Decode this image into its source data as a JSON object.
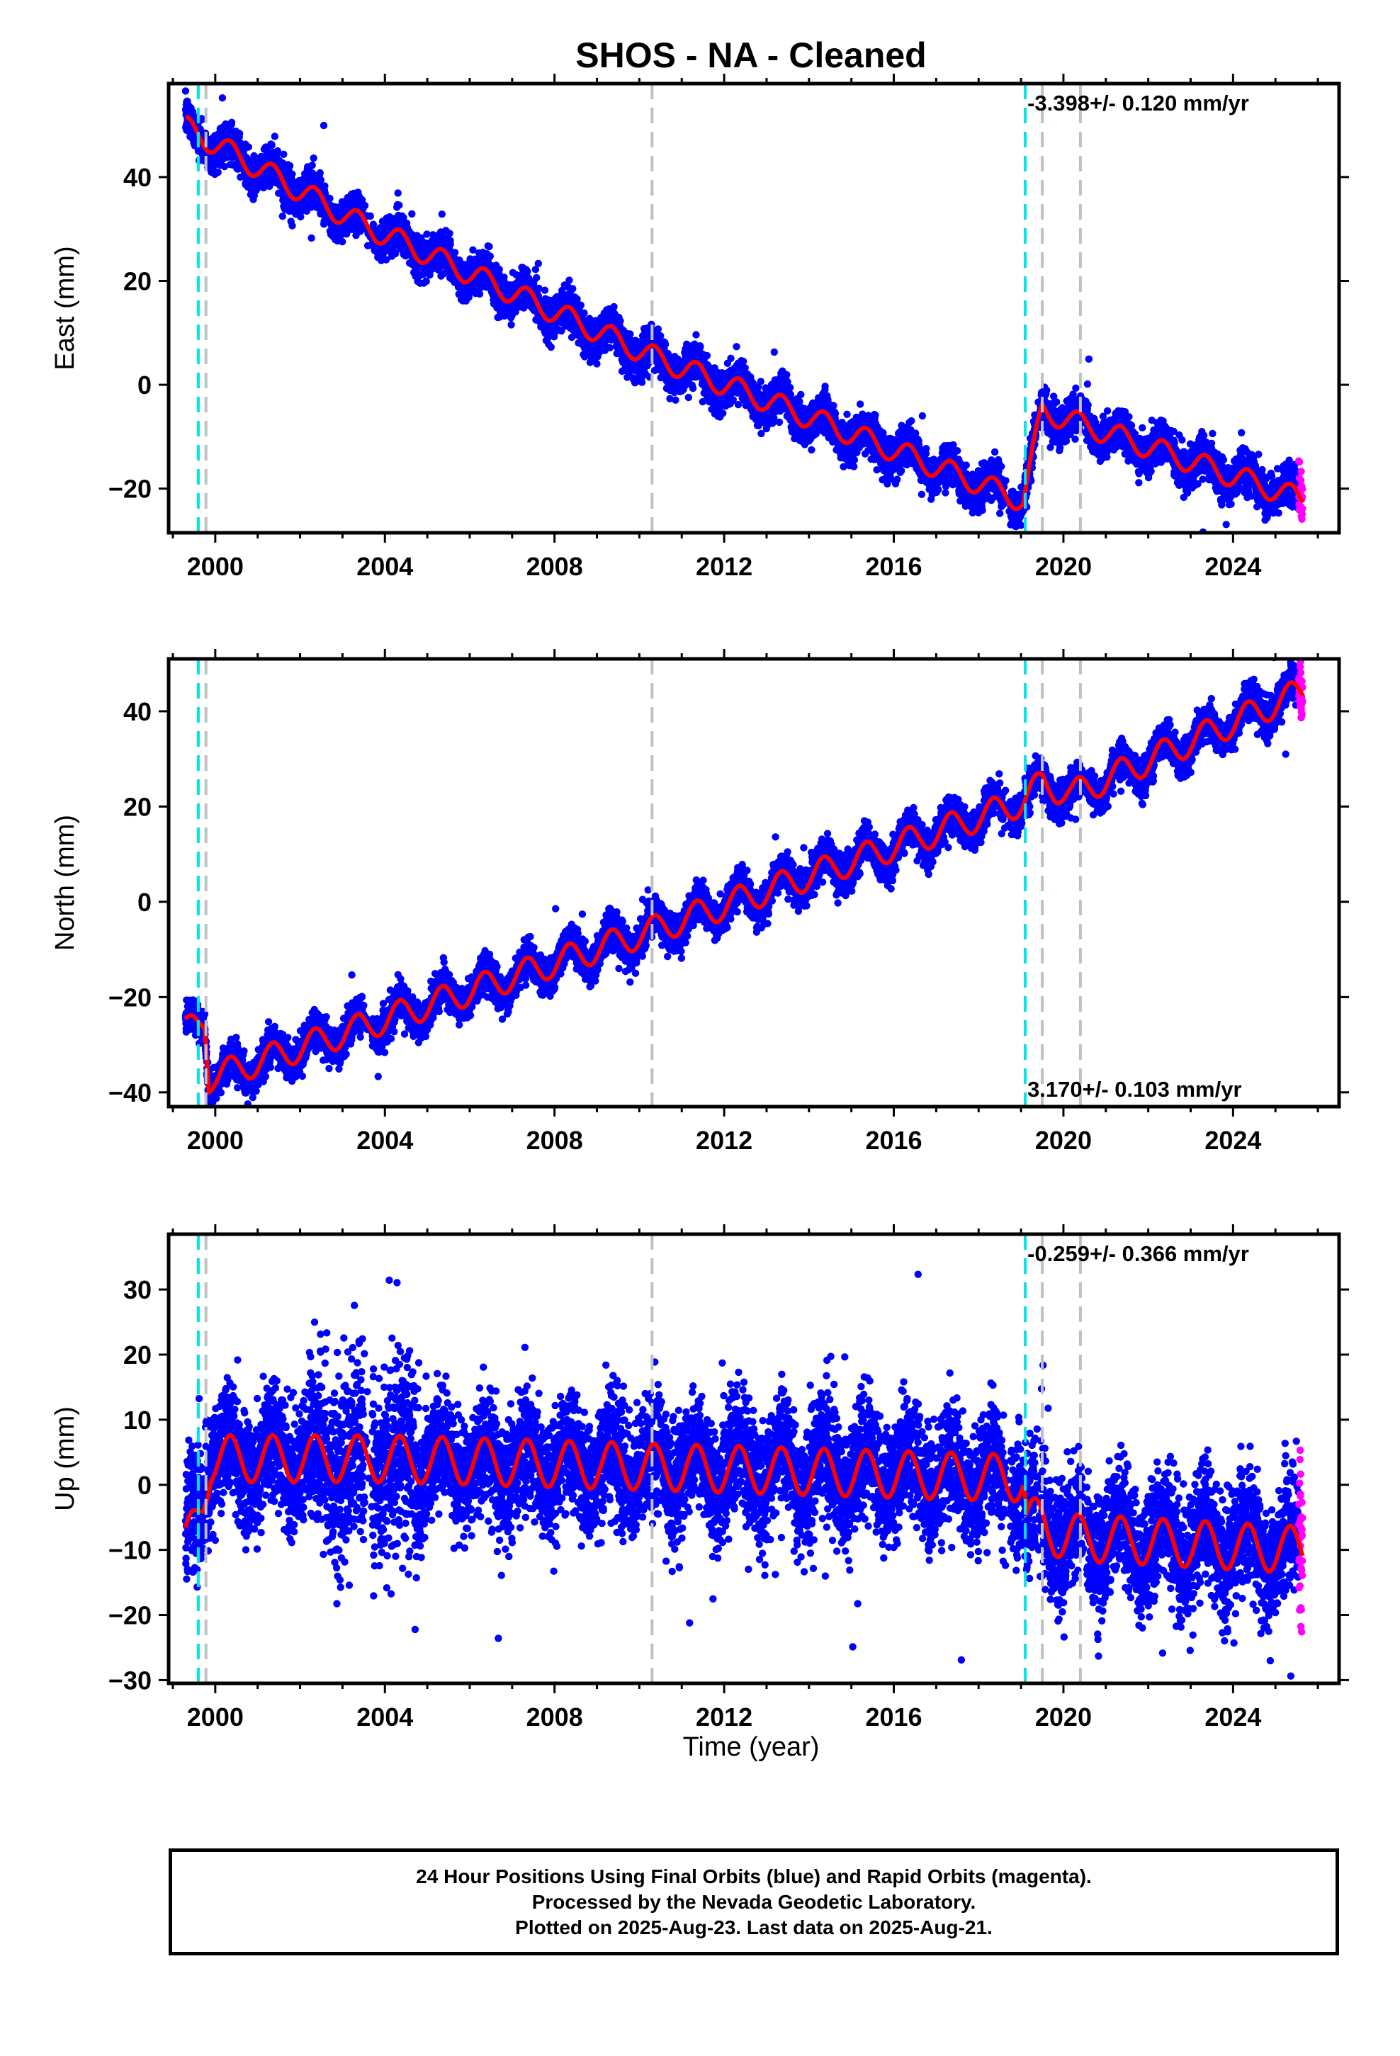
{
  "chart_data": {
    "type": "scatter",
    "title": "SHOS  - NA - Cleaned",
    "xlabel": "Time (year)",
    "xlim": [
      1998.9,
      2026.5
    ],
    "x_ticks": [
      2000,
      2004,
      2008,
      2012,
      2016,
      2020,
      2024
    ],
    "x_tick_labels": [
      "2000",
      "2004",
      "2008",
      "2012",
      "2016",
      "2020",
      "2024"
    ],
    "cyan_event_lines": [
      1999.6,
      2019.1
    ],
    "gray_event_lines": [
      1999.78,
      2010.3,
      2019.5,
      2020.4
    ],
    "colors": {
      "final": "#0000ff",
      "rapid": "#ff00ff",
      "model": "#ff0000",
      "cyan": "#00e5e5",
      "gray": "#c0c0c0"
    },
    "panels": [
      {
        "id": "east",
        "ylabel": "East (mm)",
        "ylim": [
          -28.5,
          58
        ],
        "y_ticks": [
          -20,
          0,
          20,
          40
        ],
        "y_tick_labels": [
          "−20",
          "0",
          "20",
          "40"
        ],
        "rate_label": "-3.398+/- 0.120 mm/yr",
        "rate_position": "top-right",
        "trend": [
          [
            1999.3,
            49.5
          ],
          [
            2003.3,
            31.5
          ],
          [
            2010.3,
            5.5
          ],
          [
            2019.05,
            -22.3
          ],
          [
            2019.5,
            -5.0
          ],
          [
            2025.6,
            -22.0
          ]
        ],
        "seasonal_amplitude": 2.2,
        "scatter_spread": 1.8
      },
      {
        "id": "north",
        "ylabel": "North (mm)",
        "ylim": [
          -43,
          51
        ],
        "y_ticks": [
          -40,
          -20,
          0,
          20,
          40
        ],
        "y_tick_labels": [
          "−40",
          "−20",
          "0",
          "20",
          "40"
        ],
        "rate_label": "3.170+/- 0.103 mm/yr",
        "rate_position": "bottom-right",
        "trend": [
          [
            1999.3,
            -27.5
          ],
          [
            1999.75,
            -24.0
          ],
          [
            1999.85,
            -37.0
          ],
          [
            2010.3,
            -6.0
          ],
          [
            2019.05,
            21.0
          ],
          [
            2019.5,
            25.0
          ],
          [
            2020.2,
            22.5
          ],
          [
            2025.6,
            44.0
          ]
        ],
        "seasonal_amplitude": 3.0,
        "scatter_spread": 1.8
      },
      {
        "id": "up",
        "ylabel": "Up (mm)",
        "ylim": [
          -30.5,
          38.5
        ],
        "y_ticks": [
          -30,
          -20,
          -10,
          0,
          10,
          20,
          30
        ],
        "y_tick_labels": [
          "−30",
          "−20",
          "−10",
          "0",
          "10",
          "20",
          "30"
        ],
        "rate_label": "-0.259+/- 0.366 mm/yr",
        "rate_position": "top-right",
        "trend": [
          [
            1999.3,
            -10.0
          ],
          [
            1999.7,
            -2.0
          ],
          [
            1999.9,
            4.0
          ],
          [
            2002.5,
            4.0
          ],
          [
            2004.0,
            4.0
          ],
          [
            2019.05,
            1.0
          ],
          [
            2019.15,
            -5.0
          ],
          [
            2020.0,
            -8.0
          ],
          [
            2025.6,
            -10.0
          ]
        ],
        "seasonal_amplitude": 3.6,
        "scatter_spread": 4.5
      }
    ]
  },
  "footer": {
    "line1": "24 Hour Positions Using Final Orbits (blue) and Rapid Orbits (magenta).",
    "line2": "Processed by the Nevada Geodetic Laboratory.",
    "line3": "Plotted on 2025-Aug-23. Last data on 2025-Aug-21."
  }
}
